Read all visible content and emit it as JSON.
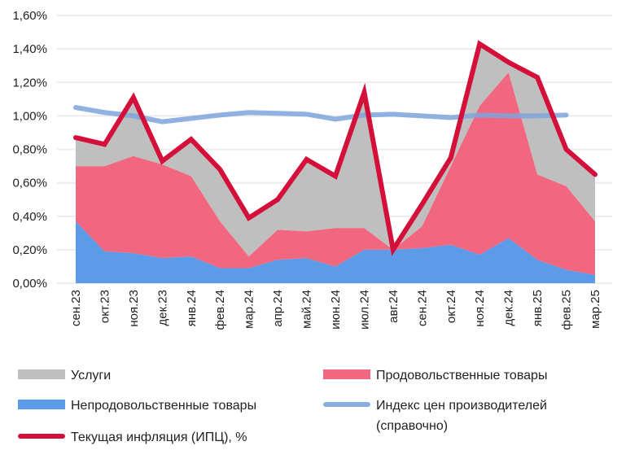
{
  "chart_data": {
    "type": "area",
    "stacked": true,
    "title": "",
    "xlabel": "",
    "ylabel": "",
    "ylim": [
      0,
      1.6
    ],
    "yticks": [
      "0,00%",
      "0,20%",
      "0,40%",
      "0,60%",
      "0,80%",
      "1,00%",
      "1,20%",
      "1,40%",
      "1,60%"
    ],
    "grid": true,
    "legend_position": "bottom",
    "categories": [
      "сен.23",
      "окт.23",
      "ноя.23",
      "дек.23",
      "янв.24",
      "фев.24",
      "мар.24",
      "апр.24",
      "май.24",
      "июн.24",
      "июл.24",
      "авг.24",
      "сен.24",
      "окт.24",
      "ноя.24",
      "дек.24",
      "янв.25",
      "фев.25",
      "мар.25"
    ],
    "series": [
      {
        "name": "Непродовольственные товары",
        "kind": "stacked-area",
        "color": "#5b9be8",
        "values": [
          0.37,
          0.19,
          0.18,
          0.15,
          0.16,
          0.09,
          0.09,
          0.14,
          0.15,
          0.1,
          0.2,
          0.2,
          0.21,
          0.23,
          0.17,
          0.27,
          0.14,
          0.08,
          0.05
        ]
      },
      {
        "name": "Продовольственные товары",
        "kind": "stacked-area",
        "color": "#f0677f",
        "values": [
          0.33,
          0.51,
          0.58,
          0.56,
          0.48,
          0.28,
          0.07,
          0.18,
          0.16,
          0.23,
          0.13,
          0.0,
          0.13,
          0.47,
          0.89,
          0.99,
          0.51,
          0.5,
          0.32
        ]
      },
      {
        "name": "Услуги",
        "kind": "stacked-area",
        "color": "#bfbfbf",
        "values": [
          0.17,
          0.13,
          0.35,
          0.02,
          0.22,
          0.31,
          0.23,
          0.18,
          0.43,
          0.31,
          0.81,
          0.0,
          0.13,
          0.05,
          0.37,
          0.06,
          0.58,
          0.22,
          0.28
        ]
      },
      {
        "name": "Индекс цен производителей",
        "name_line2": "(справочно)",
        "kind": "line",
        "color": "#7ea5dc",
        "values": [
          1.05,
          1.02,
          1.0,
          0.965,
          0.985,
          1.005,
          1.02,
          1.015,
          1.01,
          0.98,
          1.005,
          1.01,
          1.0,
          0.99,
          1.005,
          1.0,
          1.0,
          1.005,
          null
        ]
      },
      {
        "name": "Текущая инфляция (ИПЦ), %",
        "kind": "line",
        "color": "#d4103a",
        "values": [
          0.87,
          0.83,
          1.11,
          0.73,
          0.86,
          0.68,
          0.39,
          0.5,
          0.74,
          0.64,
          1.14,
          0.2,
          0.47,
          0.75,
          1.43,
          1.32,
          1.23,
          0.8,
          0.65
        ]
      }
    ]
  }
}
